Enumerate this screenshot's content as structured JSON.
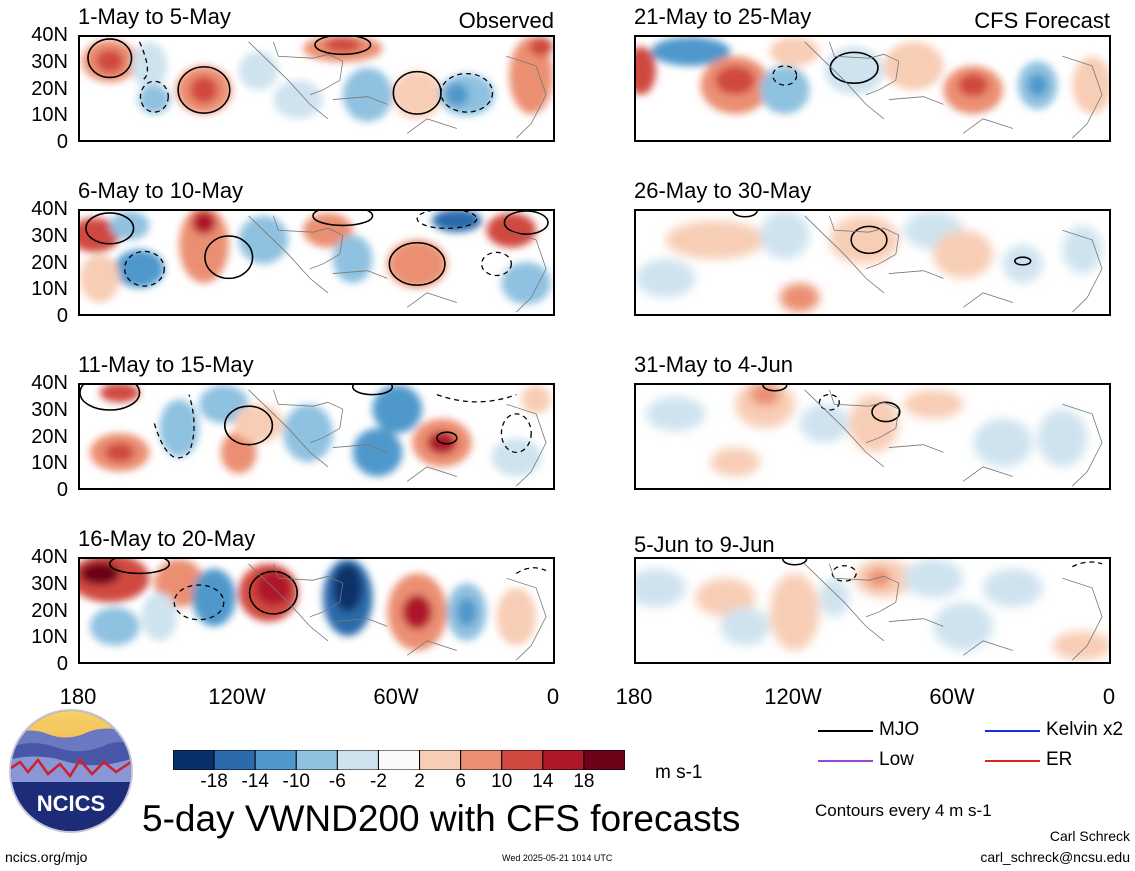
{
  "figure": {
    "title": "5-day VWND200 with CFS forecasts",
    "label_observed": "Observed",
    "label_forecast": "CFS Forecast"
  },
  "lat_labels": [
    "40N",
    "30N",
    "20N",
    "10N",
    "0"
  ],
  "lon_labels": [
    "180",
    "120W",
    "60W",
    "0"
  ],
  "observed_panels": [
    {
      "title": "1-May to 5-May"
    },
    {
      "title": "6-May to 10-May"
    },
    {
      "title": "11-May to 15-May"
    },
    {
      "title": "16-May to 20-May"
    }
  ],
  "forecast_panels": [
    {
      "title": "21-May to 25-May"
    },
    {
      "title": "26-May to 30-May"
    },
    {
      "title": "31-May to 4-Jun"
    },
    {
      "title": "5-Jun to 9-Jun"
    }
  ],
  "colorbar": {
    "ticks": [
      "-18",
      "-14",
      "-10",
      "-6",
      "-2",
      "2",
      "6",
      "10",
      "14",
      "18"
    ],
    "units": "m s-1",
    "colors": [
      "#08306b",
      "#2b6aab",
      "#4f98cc",
      "#8fc1e0",
      "#cfe3ef",
      "#fafafa",
      "#f8cdb5",
      "#eb8f72",
      "#d0483f",
      "#b0172b",
      "#6e0317"
    ]
  },
  "contour_legend": [
    {
      "label": "MJO",
      "color": "#000000"
    },
    {
      "label": "Kelvin x2",
      "color": "#1a2ce0"
    },
    {
      "label": "Low",
      "color": "#9b46d6"
    },
    {
      "label": "ER",
      "color": "#e0241b"
    }
  ],
  "contour_note": "Contours every 4 m s-1",
  "logo": {
    "text": "NCICS"
  },
  "footer": {
    "url": "ncics.org/mjo",
    "timestamp": "Wed 2025-05-21 1014 UTC",
    "author": "Carl Schreck",
    "email": "carl_schreck@ncsu.edu"
  }
}
